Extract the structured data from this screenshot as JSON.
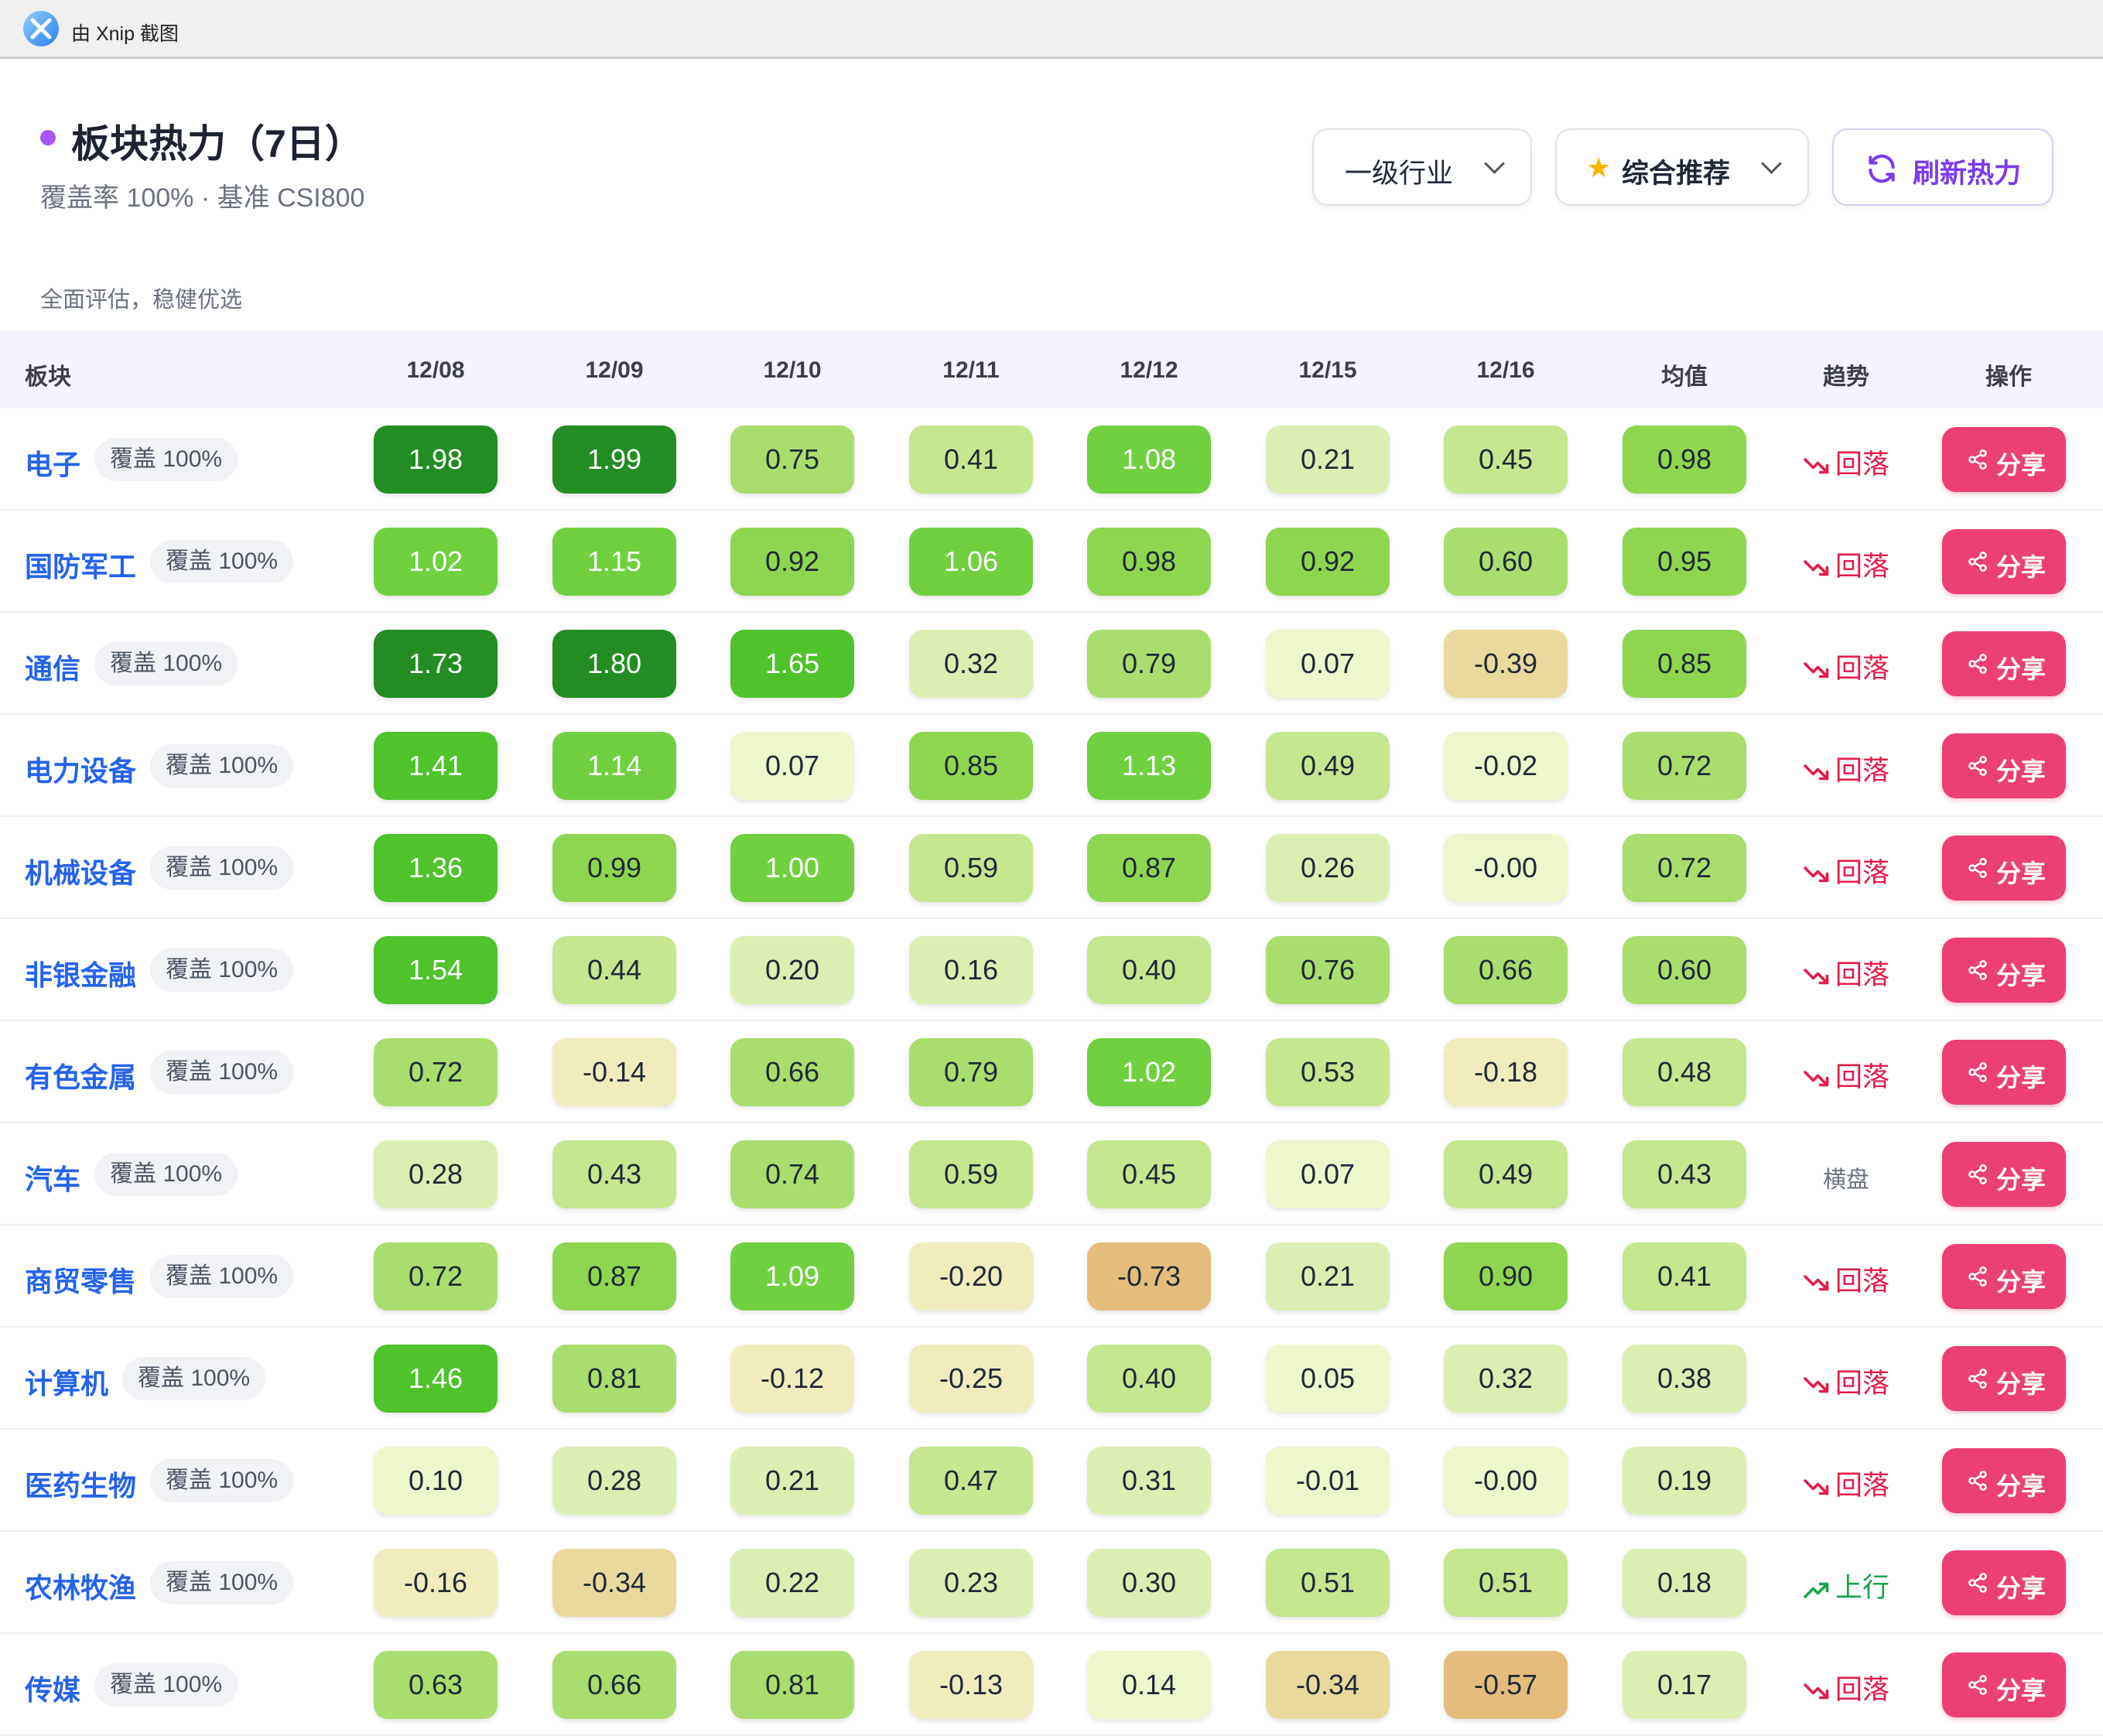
{
  "topbar": {
    "title": "由 Xnip 截图"
  },
  "header": {
    "title": "板块热力（7日）",
    "subtitle": "覆盖率 100% · 基准 CSI800",
    "description": "全面评估，稳健优选"
  },
  "controls": {
    "level_select": "一级行业",
    "sort_select": "综合推荐",
    "refresh_label": "刷新热力"
  },
  "table": {
    "columns": [
      "板块",
      "12/08",
      "12/09",
      "12/10",
      "12/11",
      "12/12",
      "12/15",
      "12/16",
      "均值",
      "趋势",
      "操作"
    ],
    "rows": [
      {
        "sector": "电子",
        "coverage": "覆盖 100%",
        "values": [
          "1.98",
          "1.99",
          "0.75",
          "0.41",
          "1.08",
          "0.21",
          "0.45"
        ],
        "avg": "0.98",
        "trend": "回落",
        "trend_dir": "down",
        "action": "分享"
      },
      {
        "sector": "国防军工",
        "coverage": "覆盖 100%",
        "values": [
          "1.02",
          "1.15",
          "0.92",
          "1.06",
          "0.98",
          "0.92",
          "0.60"
        ],
        "avg": "0.95",
        "trend": "回落",
        "trend_dir": "down",
        "action": "分享"
      },
      {
        "sector": "通信",
        "coverage": "覆盖 100%",
        "values": [
          "1.73",
          "1.80",
          "1.65",
          "0.32",
          "0.79",
          "0.07",
          "-0.39"
        ],
        "avg": "0.85",
        "trend": "回落",
        "trend_dir": "down",
        "action": "分享"
      },
      {
        "sector": "电力设备",
        "coverage": "覆盖 100%",
        "values": [
          "1.41",
          "1.14",
          "0.07",
          "0.85",
          "1.13",
          "0.49",
          "-0.02"
        ],
        "avg": "0.72",
        "trend": "回落",
        "trend_dir": "down",
        "action": "分享"
      },
      {
        "sector": "机械设备",
        "coverage": "覆盖 100%",
        "values": [
          "1.36",
          "0.99",
          "1.00",
          "0.59",
          "0.87",
          "0.26",
          "-0.00"
        ],
        "avg": "0.72",
        "trend": "回落",
        "trend_dir": "down",
        "action": "分享"
      },
      {
        "sector": "非银金融",
        "coverage": "覆盖 100%",
        "values": [
          "1.54",
          "0.44",
          "0.20",
          "0.16",
          "0.40",
          "0.76",
          "0.66"
        ],
        "avg": "0.60",
        "trend": "回落",
        "trend_dir": "down",
        "action": "分享"
      },
      {
        "sector": "有色金属",
        "coverage": "覆盖 100%",
        "values": [
          "0.72",
          "-0.14",
          "0.66",
          "0.79",
          "1.02",
          "0.53",
          "-0.18"
        ],
        "avg": "0.48",
        "trend": "回落",
        "trend_dir": "down",
        "action": "分享"
      },
      {
        "sector": "汽车",
        "coverage": "覆盖 100%",
        "values": [
          "0.28",
          "0.43",
          "0.74",
          "0.59",
          "0.45",
          "0.07",
          "0.49"
        ],
        "avg": "0.43",
        "trend": "横盘",
        "trend_dir": "flat",
        "action": "分享"
      },
      {
        "sector": "商贸零售",
        "coverage": "覆盖 100%",
        "values": [
          "0.72",
          "0.87",
          "1.09",
          "-0.20",
          "-0.73",
          "0.21",
          "0.90"
        ],
        "avg": "0.41",
        "trend": "回落",
        "trend_dir": "down",
        "action": "分享"
      },
      {
        "sector": "计算机",
        "coverage": "覆盖 100%",
        "values": [
          "1.46",
          "0.81",
          "-0.12",
          "-0.25",
          "0.40",
          "0.05",
          "0.32"
        ],
        "avg": "0.38",
        "trend": "回落",
        "trend_dir": "down",
        "action": "分享"
      },
      {
        "sector": "医药生物",
        "coverage": "覆盖 100%",
        "values": [
          "0.10",
          "0.28",
          "0.21",
          "0.47",
          "0.31",
          "-0.01",
          "-0.00"
        ],
        "avg": "0.19",
        "trend": "回落",
        "trend_dir": "down",
        "action": "分享"
      },
      {
        "sector": "农林牧渔",
        "coverage": "覆盖 100%",
        "values": [
          "-0.16",
          "-0.34",
          "0.22",
          "0.23",
          "0.30",
          "0.51",
          "0.51"
        ],
        "avg": "0.18",
        "trend": "上行",
        "trend_dir": "up",
        "action": "分享"
      },
      {
        "sector": "传媒",
        "coverage": "覆盖 100%",
        "values": [
          "0.63",
          "0.66",
          "0.81",
          "-0.13",
          "0.14",
          "-0.34",
          "-0.57"
        ],
        "avg": "0.17",
        "trend": "回落",
        "trend_dir": "down",
        "action": "分享"
      }
    ]
  },
  "colors": {
    "accent": "#7c3aed",
    "sector_link": "#2563eb",
    "share_button": "#ec3f74",
    "trend_down": "#e11d48",
    "trend_up": "#16a34a"
  }
}
